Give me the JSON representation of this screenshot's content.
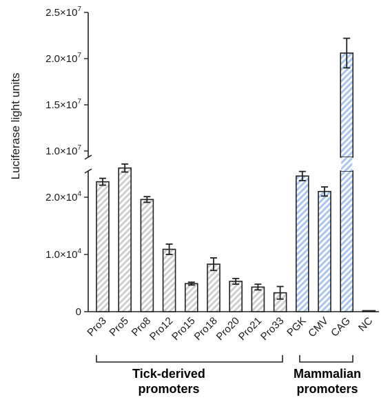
{
  "chart_data": {
    "type": "bar",
    "ylabel": "Luciferase light units",
    "y_axis": {
      "broken": true,
      "lower_segment": {
        "range": [
          0,
          25000
        ],
        "ticks": [
          {
            "value": 0,
            "label": "0",
            "exp": ""
          },
          {
            "value": 10000,
            "label": "1.0×10",
            "exp": "4"
          },
          {
            "value": 20000,
            "label": "2.0×10",
            "exp": "4"
          }
        ]
      },
      "upper_segment": {
        "range": [
          10000000,
          25000000
        ],
        "ticks": [
          {
            "value": 10000000,
            "label": "1.0×10",
            "exp": "7"
          },
          {
            "value": 15000000,
            "label": "1.5×10",
            "exp": "7"
          },
          {
            "value": 20000000,
            "label": "2.0×10",
            "exp": "7"
          },
          {
            "value": 25000000,
            "label": "2.5×10",
            "exp": "7"
          }
        ]
      }
    },
    "categories": [
      "Pro3",
      "Pro5",
      "Pro8",
      "Pro12",
      "Pro15",
      "Pro18",
      "Pro20",
      "Pro21",
      "Pro33",
      "PGK",
      "CMV",
      "CAG",
      "NC"
    ],
    "values": [
      22700,
      25100,
      19600,
      10900,
      4900,
      8300,
      5300,
      4300,
      3300,
      23700,
      21000,
      20600000,
      100
    ],
    "errors": [
      600,
      700,
      500,
      900,
      250,
      1100,
      500,
      500,
      1100,
      800,
      800,
      1600000,
      0
    ],
    "groups": [
      {
        "name_line1": "Tick-derived",
        "name_line2": "promoters",
        "categories": [
          "Pro3",
          "Pro5",
          "Pro8",
          "Pro12",
          "Pro15",
          "Pro18",
          "Pro20",
          "Pro21",
          "Pro33"
        ],
        "color": "#cfcfcf"
      },
      {
        "name_line1": "Mammalian",
        "name_line2": "promoters",
        "categories": [
          "PGK",
          "CMV",
          "CAG",
          "NC"
        ],
        "color": "#a9c6ee"
      }
    ],
    "grid": false,
    "legend": "none"
  }
}
